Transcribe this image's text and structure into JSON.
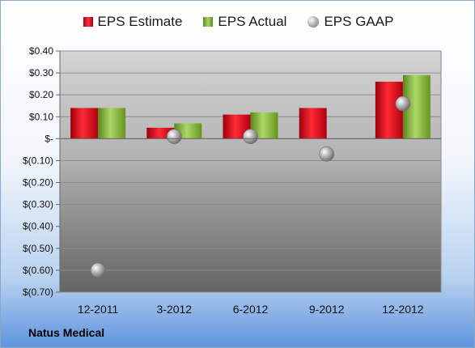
{
  "legend": {
    "estimate_label": "EPS Estimate",
    "actual_label": "EPS Actual",
    "gaap_label": "EPS GAAP"
  },
  "company_name": "Natus Medical",
  "colors": {
    "estimate": "#e0121f",
    "actual": "#8fc34a",
    "gaap": "#a0a0a0"
  },
  "chart_data": {
    "type": "bar",
    "categories": [
      "12-2011",
      "3-2012",
      "6-2012",
      "9-2012",
      "12-2012"
    ],
    "series": [
      {
        "name": "EPS Estimate",
        "kind": "bar",
        "values": [
          0.14,
          0.05,
          0.11,
          0.14,
          0.26
        ]
      },
      {
        "name": "EPS Actual",
        "kind": "bar",
        "values": [
          0.14,
          0.07,
          0.12,
          null,
          0.29
        ]
      },
      {
        "name": "EPS GAAP",
        "kind": "scatter",
        "values": [
          -0.6,
          0.01,
          0.01,
          -0.07,
          0.16
        ]
      }
    ],
    "ylim": [
      -0.7,
      0.4
    ],
    "yticks": [
      0.4,
      0.3,
      0.2,
      0.1,
      0.0,
      -0.1,
      -0.2,
      -0.3,
      -0.4,
      -0.5,
      -0.6,
      -0.7
    ],
    "ytick_labels": [
      "$0.40",
      "$0.30",
      "$0.20",
      "$0.10",
      "$-",
      "$(0.10)",
      "$(0.20)",
      "$(0.30)",
      "$(0.40)",
      "$(0.50)",
      "$(0.60)",
      "$(0.70)"
    ],
    "legend_position": "top",
    "grid": true
  }
}
